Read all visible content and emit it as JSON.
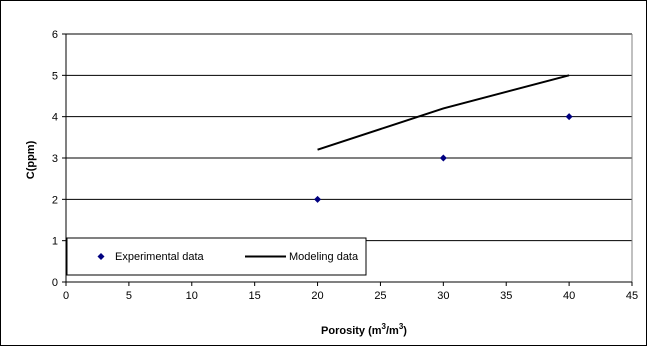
{
  "chart_data": {
    "type": "scatter",
    "title": "",
    "xlabel_main": "Porosity (m",
    "xlabel_sup1": "3",
    "xlabel_mid": "/m",
    "xlabel_sup2": "3",
    "xlabel_end": ")",
    "ylabel": "C(ppm)",
    "xlim": [
      0,
      45
    ],
    "ylim": [
      0,
      6
    ],
    "xticks": [
      0,
      5,
      10,
      15,
      20,
      25,
      30,
      35,
      40,
      45
    ],
    "yticks": [
      0,
      1,
      2,
      3,
      4,
      5,
      6
    ],
    "grid": "horizontal",
    "legend_position": "bottom-left",
    "series": [
      {
        "name": "Experimental data",
        "kind": "markers",
        "marker": "diamond",
        "color": "#000080",
        "x": [
          20,
          30,
          40
        ],
        "y": [
          2,
          3,
          4
        ]
      },
      {
        "name": "Modeling data",
        "kind": "line",
        "color": "#000000",
        "x": [
          20,
          30,
          40
        ],
        "y": [
          3.2,
          4.2,
          5.0
        ]
      }
    ]
  }
}
